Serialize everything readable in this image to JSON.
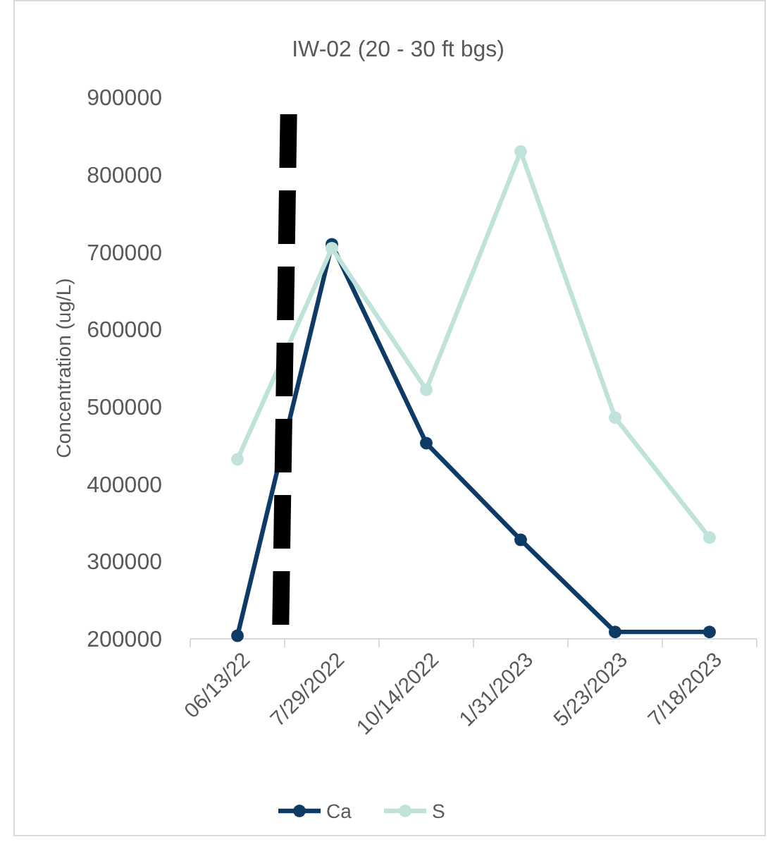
{
  "chart_data": {
    "type": "line",
    "title": "IW-02 (20 - 30 ft bgs)",
    "ylabel": "Concentration (ug/L)",
    "categories": [
      "06/13/22",
      "7/29/2022",
      "10/14/2022",
      "1/31/2023",
      "5/23/2023",
      "7/18/2023"
    ],
    "series": [
      {
        "name": "Ca",
        "color": "#0e3a66",
        "values": [
          204000,
          710000,
          453000,
          328000,
          209000,
          209000
        ]
      },
      {
        "name": "S",
        "color": "#bfe3da",
        "values": [
          432000,
          705000,
          522000,
          830000,
          486000,
          331000
        ]
      }
    ],
    "ylim": [
      200000,
      900000
    ],
    "yticks": [
      200000,
      300000,
      400000,
      500000,
      600000,
      700000,
      800000,
      900000
    ],
    "grid": false,
    "legend": "bottom",
    "marker": "circle",
    "line_style": "solid"
  }
}
